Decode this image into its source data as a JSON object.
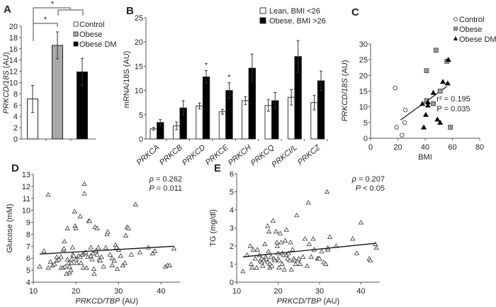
{
  "chart_data": [
    {
      "id": "A",
      "type": "bar",
      "panel_label": "A",
      "ylabel": "PRKCD/18S (AU)",
      "xlabel": "",
      "ylim": [
        0,
        20
      ],
      "yticks": [
        0,
        2,
        4,
        6,
        8,
        10,
        12,
        14,
        16,
        18,
        20
      ],
      "categories": [
        "Control",
        "Obese",
        "Obese DM"
      ],
      "values": [
        7.1,
        16.6,
        11.9
      ],
      "errors": [
        2.4,
        2.4,
        2.4
      ],
      "colors": [
        "#ffffff",
        "#a8a8a8",
        "#000000"
      ],
      "legend": [
        "Control",
        "Obese",
        "Obese DM"
      ],
      "legend_position": "top-right",
      "significance": [
        {
          "from": "Control",
          "to": "Obese",
          "label": "*"
        },
        {
          "from": "Control",
          "to": "Obese/Obese DM",
          "label": "*"
        }
      ]
    },
    {
      "id": "B",
      "type": "bar",
      "panel_label": "B",
      "ylabel": "mRNA/18S (AU)",
      "xlabel": "",
      "ylim": [
        0,
        25
      ],
      "yticks": [
        0,
        5,
        10,
        15,
        20,
        25
      ],
      "categories": [
        "PRKCA",
        "PRKCB",
        "PRKCD",
        "PRKCE",
        "PRKCH",
        "PRKCQ",
        "PRKCI/L",
        "PRKCZ"
      ],
      "series": [
        {
          "name": "Lean, BMI <26",
          "color": "#ffffff",
          "values": [
            2.1,
            2.7,
            6.8,
            5.6,
            7.9,
            6.9,
            8.6,
            7.5
          ],
          "errors": [
            0.3,
            0.8,
            0.6,
            0.5,
            0.8,
            1.2,
            1.6,
            1.5
          ]
        },
        {
          "name": "Obese, BMI >26",
          "color": "#000000",
          "values": [
            3.4,
            6.4,
            12.8,
            10.0,
            14.6,
            7.9,
            17.0,
            12.0
          ],
          "errors": [
            0.6,
            1.5,
            1.3,
            1.6,
            2.9,
            1.7,
            3.3,
            2.0
          ]
        }
      ],
      "significance": [
        "",
        "",
        "*",
        "*",
        "",
        "",
        "",
        ""
      ],
      "legend_position": "top-right"
    },
    {
      "id": "C",
      "type": "scatter",
      "panel_label": "C",
      "xlabel": "BMI",
      "ylabel": "PRKCD/18S (AU)",
      "xlim": [
        0,
        80
      ],
      "ylim": [
        0,
        30
      ],
      "xticks": [
        0,
        20,
        40,
        60,
        80
      ],
      "yticks": [
        0,
        5,
        10,
        15,
        20,
        25,
        30
      ],
      "series": [
        {
          "name": "Control",
          "marker": "circle-open",
          "points": [
            [
              18,
              16
            ],
            [
              19,
              3.5
            ],
            [
              23,
              1
            ],
            [
              25,
              5
            ],
            [
              25.5,
              9
            ]
          ]
        },
        {
          "name": "Obese",
          "marker": "square-gray",
          "points": [
            [
              48,
              28
            ],
            [
              56,
              24.5
            ],
            [
              41,
              21.5
            ],
            [
              51,
              15
            ],
            [
              41,
              12
            ],
            [
              46,
              11
            ],
            [
              58.5,
              3.5
            ]
          ]
        },
        {
          "name": "Obese DM",
          "marker": "triangle-filled",
          "points": [
            [
              57,
              25
            ],
            [
              53,
              18
            ],
            [
              56.5,
              17.5
            ],
            [
              46,
              14.5
            ],
            [
              38,
              11
            ],
            [
              42,
              11.5
            ],
            [
              42,
              10.5
            ],
            [
              40.5,
              7.5
            ],
            [
              39,
              3.5
            ],
            [
              49,
              6
            ],
            [
              51,
              5
            ]
          ]
        }
      ],
      "trendline": [
        [
          22,
          5.8
        ],
        [
          56,
          16.5
        ]
      ],
      "annotations": [
        "r² = 0.195",
        "P = 0.035"
      ],
      "legend": [
        "Control",
        "Obese",
        "Obese DM"
      ],
      "legend_position": "top-right"
    },
    {
      "id": "D",
      "type": "scatter",
      "panel_label": "D",
      "xlabel": "PRKCD/TBP (AU)",
      "ylabel": "Glucose (mM)",
      "xlim": [
        10,
        45
      ],
      "ylim": [
        4,
        13
      ],
      "xticks": [
        10,
        20,
        30,
        40
      ],
      "yticks": [
        4,
        5,
        6,
        7,
        8,
        9,
        10,
        11,
        12,
        13
      ],
      "marker": "triangle-open",
      "points": [
        [
          11.5,
          5.3
        ],
        [
          12.5,
          6.6
        ],
        [
          13.5,
          11.3
        ],
        [
          13.5,
          5.2
        ],
        [
          14,
          5.7
        ],
        [
          14.5,
          5.4
        ],
        [
          15,
          5.5
        ],
        [
          15.5,
          6.1
        ],
        [
          15.5,
          5.8
        ],
        [
          16,
          5.9
        ],
        [
          16.5,
          5.2
        ],
        [
          16.5,
          6.1
        ],
        [
          17,
          5.2
        ],
        [
          17,
          6.7
        ],
        [
          17.2,
          6.8
        ],
        [
          17.3,
          7.4
        ],
        [
          17.5,
          5.3
        ],
        [
          17.8,
          4.7
        ],
        [
          18,
          8.5
        ],
        [
          18,
          5.9
        ],
        [
          18.3,
          5.6
        ],
        [
          18.5,
          4.8
        ],
        [
          18.5,
          5.3
        ],
        [
          18.8,
          5.0
        ],
        [
          19,
          5.9
        ],
        [
          19,
          5.6
        ],
        [
          19.2,
          6.9
        ],
        [
          19.3,
          6.3
        ],
        [
          19.5,
          6.2
        ],
        [
          19.7,
          9.9
        ],
        [
          19.8,
          8.7
        ],
        [
          20,
          8.5
        ],
        [
          20,
          5.9
        ],
        [
          20.2,
          5.6
        ],
        [
          20.5,
          6.1
        ],
        [
          20.7,
          6.2
        ],
        [
          21,
          9.5
        ],
        [
          21,
          6.1
        ],
        [
          21.2,
          5.6
        ],
        [
          21.5,
          6.3
        ],
        [
          21.7,
          5.2
        ],
        [
          22,
          6.4
        ],
        [
          22,
          12.2
        ],
        [
          22,
          11.4
        ],
        [
          22.3,
          6.5
        ],
        [
          22.5,
          5.2
        ],
        [
          22.8,
          6.1
        ],
        [
          23,
          9.1
        ],
        [
          23.2,
          9.1
        ],
        [
          23.5,
          6.2
        ],
        [
          23.5,
          6.9
        ],
        [
          23.8,
          5.9
        ],
        [
          24,
          6.4
        ],
        [
          24.2,
          5.1
        ],
        [
          24.3,
          4.7
        ],
        [
          24.5,
          8.6
        ],
        [
          24.7,
          6.6
        ],
        [
          25,
          6.3
        ],
        [
          25,
          8.5
        ],
        [
          25.3,
          6.9
        ],
        [
          25.5,
          5.9
        ],
        [
          25.7,
          5.8
        ],
        [
          26,
          6.1
        ],
        [
          26.5,
          5.3
        ],
        [
          27,
          6.9
        ],
        [
          27.3,
          8.0
        ],
        [
          27.5,
          8.2
        ],
        [
          28,
          6.3
        ],
        [
          28.5,
          5.4
        ],
        [
          28.5,
          6.0
        ],
        [
          29,
          5.8
        ],
        [
          29.3,
          7.1
        ],
        [
          29.5,
          6.9
        ],
        [
          29.7,
          5.1
        ],
        [
          30,
          6.7
        ],
        [
          30.5,
          6.2
        ],
        [
          31,
          5.4
        ],
        [
          31.5,
          5.6
        ],
        [
          31.7,
          7.9
        ],
        [
          32,
          8.6
        ],
        [
          32.3,
          8.5
        ],
        [
          33,
          6.3
        ],
        [
          34,
          10.5
        ],
        [
          35,
          6.5
        ],
        [
          37,
          6.9
        ],
        [
          38,
          6.4
        ],
        [
          38.5,
          6.6
        ],
        [
          41,
          5.3
        ],
        [
          41.5,
          5.4
        ],
        [
          42,
          5.4
        ],
        [
          43,
          6.8
        ]
      ],
      "trendline": [
        [
          11.5,
          6.35
        ],
        [
          43,
          7.0
        ]
      ],
      "annotations": [
        "ρ = 0.262",
        "P = 0.011"
      ]
    },
    {
      "id": "E",
      "type": "scatter",
      "panel_label": "E",
      "xlabel": "PRKCD/TBP (AU)",
      "ylabel": "TG (mg/dl)",
      "xlim": [
        10,
        45
      ],
      "ylim": [
        0,
        6
      ],
      "xticks": [
        10,
        20,
        30,
        40
      ],
      "yticks": [
        0,
        1,
        2,
        3,
        4,
        5,
        6
      ],
      "marker": "triangle-open",
      "points": [
        [
          11.5,
          0.6
        ],
        [
          12.5,
          1.5
        ],
        [
          13.3,
          2.0
        ],
        [
          13.5,
          1.0
        ],
        [
          13.7,
          0.8
        ],
        [
          14,
          1.8
        ],
        [
          14.5,
          1.3
        ],
        [
          14.8,
          0.8
        ],
        [
          15,
          1.8
        ],
        [
          15.5,
          1.5
        ],
        [
          15.7,
          1.2
        ],
        [
          16,
          1.1
        ],
        [
          16,
          1.3
        ],
        [
          16.3,
          0.9
        ],
        [
          16.5,
          1.2
        ],
        [
          16.8,
          2.1
        ],
        [
          17,
          1.4
        ],
        [
          17.2,
          1.3
        ],
        [
          17.5,
          1.1
        ],
        [
          17.5,
          3.1
        ],
        [
          17.7,
          1.7
        ],
        [
          17.8,
          2.8
        ],
        [
          18,
          1.0
        ],
        [
          18,
          0.8
        ],
        [
          18.3,
          1.4
        ],
        [
          18.5,
          0.9
        ],
        [
          18.8,
          3.4
        ],
        [
          19,
          1.3
        ],
        [
          19.2,
          1.2
        ],
        [
          19.5,
          2.8
        ],
        [
          19.7,
          2.2
        ],
        [
          19.8,
          2.0
        ],
        [
          20,
          1.3
        ],
        [
          20,
          1.6
        ],
        [
          20.2,
          0.8
        ],
        [
          20.3,
          1.2
        ],
        [
          20.5,
          2.7
        ],
        [
          20.7,
          2.2
        ],
        [
          21,
          1.6
        ],
        [
          21,
          1.0
        ],
        [
          21.3,
          1.5
        ],
        [
          21.5,
          0.7
        ],
        [
          21.7,
          2.3
        ],
        [
          22,
          1.5
        ],
        [
          22,
          2.9
        ],
        [
          22.3,
          1.3
        ],
        [
          22.5,
          1.6
        ],
        [
          22.8,
          1.2
        ],
        [
          23,
          2.2
        ],
        [
          23.2,
          0.7
        ],
        [
          23.5,
          1.8
        ],
        [
          23.8,
          1.3
        ],
        [
          24,
          1.2
        ],
        [
          24.2,
          1.0
        ],
        [
          24.5,
          3.7
        ],
        [
          24.7,
          1.2
        ],
        [
          25,
          1.3
        ],
        [
          25.3,
          1.0
        ],
        [
          26,
          1.4
        ],
        [
          26.5,
          2.4
        ],
        [
          27,
          0.9
        ],
        [
          27.3,
          4.4
        ],
        [
          27.5,
          2.1
        ],
        [
          28,
          1.4
        ],
        [
          28.5,
          2.4
        ],
        [
          28.7,
          1.8
        ],
        [
          29.5,
          1.3
        ],
        [
          29.7,
          1.3
        ],
        [
          30,
          1.3
        ],
        [
          30.5,
          1.7
        ],
        [
          31,
          1.1
        ],
        [
          31.5,
          1.0
        ],
        [
          31.8,
          5.0
        ],
        [
          32,
          1.8
        ],
        [
          32,
          1.9
        ],
        [
          32.5,
          2.5
        ],
        [
          34,
          2.0
        ],
        [
          38,
          2.4
        ],
        [
          39,
          1.6
        ],
        [
          40,
          3.3
        ],
        [
          42,
          1.3
        ],
        [
          42.3,
          1.2
        ],
        [
          43.5,
          2.1
        ],
        [
          43.7,
          1.9
        ]
      ],
      "trendline": [
        [
          11.5,
          1.4
        ],
        [
          43.5,
          2.15
        ]
      ],
      "annotations": [
        "ρ = 0.207",
        "P < 0.05"
      ]
    }
  ]
}
